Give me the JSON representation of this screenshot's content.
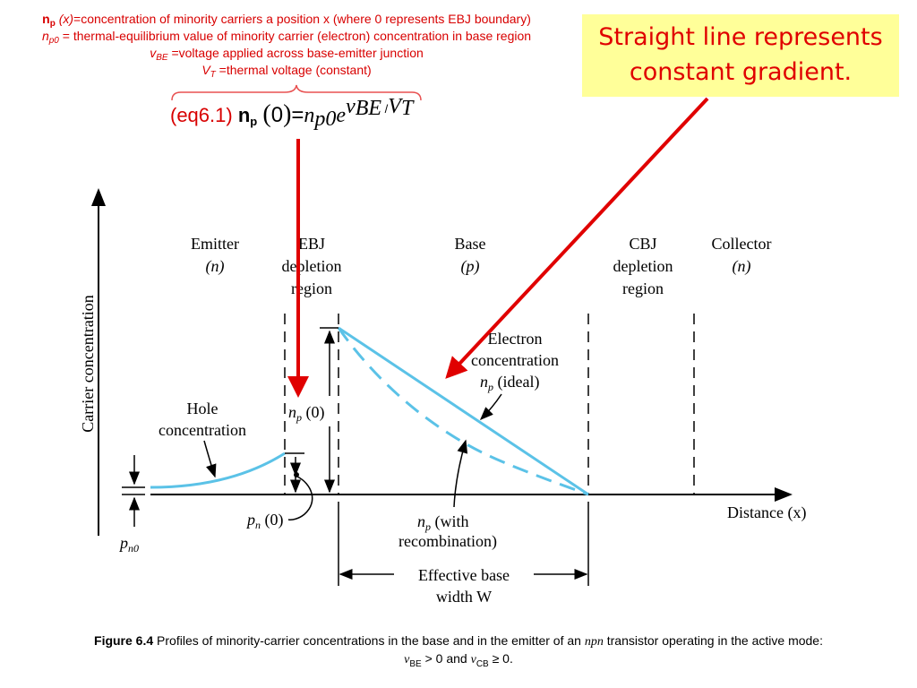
{
  "definitions": {
    "line1_sym": "n",
    "line1_sub": "p",
    "line1_arg": "(x)",
    "line1_text": "=concentration of minority carriers a position x (where 0 represents EBJ boundary)",
    "line2_sym": "n",
    "line2_sub": "p0",
    "line2_text": " = thermal-equilibrium value of minority carrier (electron) concentration in base region",
    "line3_sym": "v",
    "line3_sub": "BE",
    "line3_text": " =voltage applied across base-emitter junction",
    "line4_sym": "V",
    "line4_sub": "T",
    "line4_text": " =thermal voltage (constant)"
  },
  "equation": {
    "label": "(eq6.1)",
    "lhs_sym": "n",
    "lhs_sub": "p",
    "lhs_arg": "0",
    "equals": "=",
    "rhs_sym": "n",
    "rhs_sub": "p0",
    "rhs_base": "e",
    "exp_v": "v",
    "exp_v_sub": "BE",
    "exp_slash": " /",
    "exp_V": "V",
    "exp_V_sub": "T"
  },
  "callout": {
    "line1": "Straight line represents",
    "line2": "constant gradient."
  },
  "figure": {
    "y_axis_label": "Carrier concentration",
    "x_axis_label": "Distance (x)",
    "regions": {
      "emitter_1": "Emitter",
      "emitter_2": "(n)",
      "ebj_1": "EBJ",
      "ebj_2": "depletion",
      "ebj_3": "region",
      "base_1": "Base",
      "base_2": "(p)",
      "cbj_1": "CBJ",
      "cbj_2": "depletion",
      "cbj_3": "region",
      "collector_1": "Collector",
      "collector_2": "(n)"
    },
    "labels": {
      "hole_1": "Hole",
      "hole_2": "concentration",
      "electron_1": "Electron",
      "electron_2": "concentration",
      "np_ideal_sym": "n",
      "np_ideal_sub": "p",
      "np_ideal_text": " (ideal)",
      "np0_sym": "n",
      "np0_sub": "p",
      "np0_text": " (0)",
      "pn0_sym": "p",
      "pn0_sub": "n",
      "pn0_text": " (0)",
      "pn0_eq_sym": "p",
      "pn0_eq_sub": "n0",
      "np_rec_sym": "n",
      "np_rec_sub": "p",
      "np_rec_text": " (with",
      "np_rec_2": "recombination)",
      "eff_1": "Effective base",
      "eff_2": "width W"
    },
    "colors": {
      "profile": "#5bc2e7",
      "arrow": "#e00000",
      "text_red": "#d80000"
    }
  },
  "caption": {
    "figure_no": "Figure 6.4",
    "text_a": " Profiles of minority-carrier concentrations in the base and in the emitter of an ",
    "npn": "npn",
    "text_b": " transistor operating in the active mode:",
    "cond_v1": "v",
    "cond_v1_sub": "BE",
    "cond_mid": " > 0 and ",
    "cond_v2": "v",
    "cond_v2_sub": "CB",
    "cond_end": " ≥ 0."
  }
}
